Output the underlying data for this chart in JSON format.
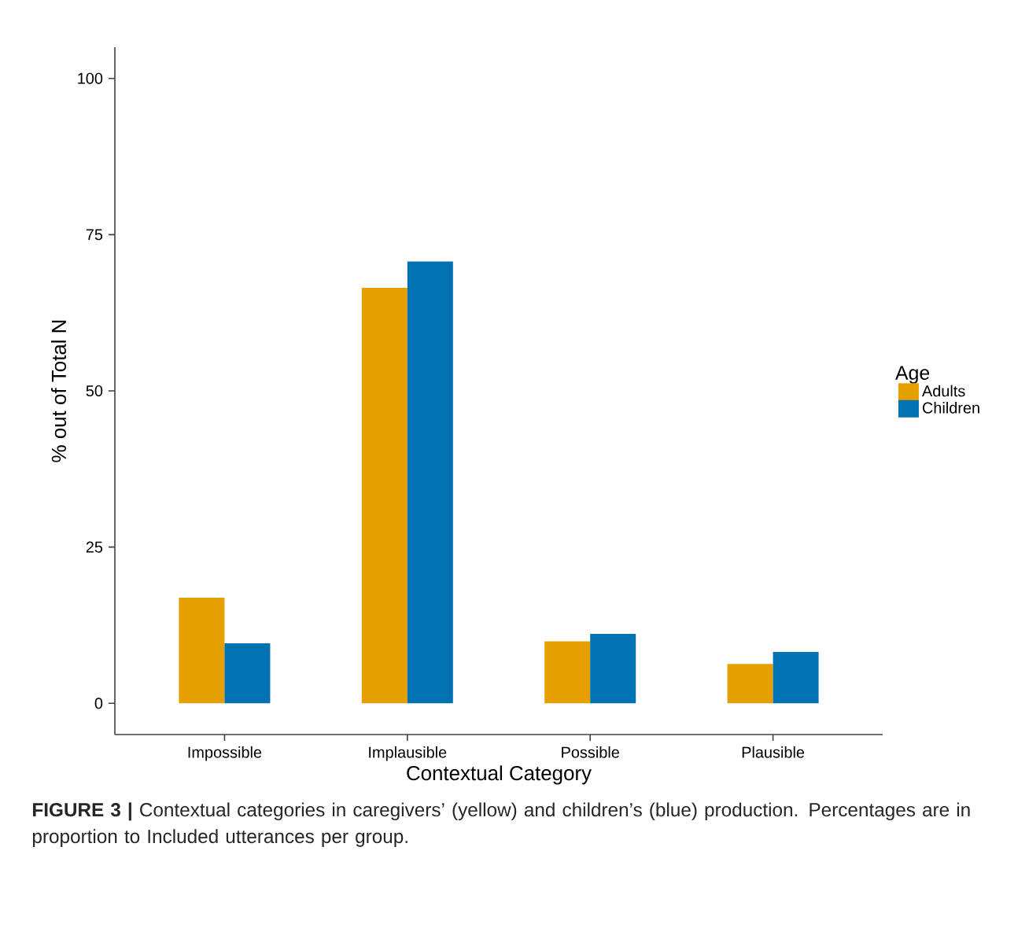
{
  "chart_data": {
    "type": "bar",
    "categories": [
      "Impossible",
      "Implausible",
      "Possible",
      "Plausible"
    ],
    "series": [
      {
        "name": "Adults",
        "color": "#e69f00",
        "values": [
          16.9,
          66.5,
          9.9,
          6.3
        ]
      },
      {
        "name": "Children",
        "color": "#0072b2",
        "values": [
          9.6,
          70.7,
          11.1,
          8.2
        ]
      }
    ],
    "xlabel": "Contextual Category",
    "ylabel": "% out of Total N",
    "legend_title": "Age",
    "legend": "right",
    "ylim": [
      -5,
      105
    ],
    "yticks": [
      0,
      25,
      50,
      75,
      100
    ],
    "annotations": [
      "**FIGURE 3 |** Contextual categories in caregivers’ (yellow) and children’s (blue) production. Percentages are in proportion to Included utterances per group."
    ]
  }
}
